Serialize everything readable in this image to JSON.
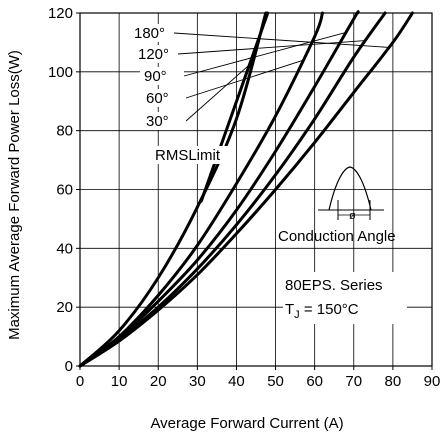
{
  "chart_data": {
    "type": "line",
    "xlabel": "Average Forward Current (A)",
    "ylabel": "Maximum Average Forward Power Loss(W)",
    "xlim": [
      0,
      90
    ],
    "ylim": [
      0,
      120
    ],
    "xticks": [
      0,
      10,
      20,
      30,
      40,
      50,
      60,
      70,
      80,
      90
    ],
    "yticks": [
      0,
      20,
      40,
      60,
      80,
      100,
      120
    ],
    "grid": true,
    "series": [
      {
        "name": "180°",
        "x": [
          0,
          10,
          20,
          30,
          40,
          50,
          60,
          70,
          80,
          85
        ],
        "y": [
          0,
          8.5,
          19,
          31,
          45,
          60,
          76,
          93,
          110,
          120
        ]
      },
      {
        "name": "120°",
        "x": [
          0,
          10,
          20,
          30,
          40,
          50,
          60,
          70,
          78
        ],
        "y": [
          0,
          9,
          20,
          33,
          48,
          65,
          84,
          105,
          120
        ]
      },
      {
        "name": "90°",
        "x": [
          0,
          10,
          20,
          30,
          40,
          50,
          60,
          70,
          71
        ],
        "y": [
          0,
          9.5,
          22,
          36,
          53,
          73,
          95,
          118,
          120
        ]
      },
      {
        "name": "60°",
        "x": [
          0,
          10,
          20,
          30,
          40,
          50,
          60,
          62
        ],
        "y": [
          0,
          10,
          24,
          41,
          62,
          85,
          112,
          120
        ]
      },
      {
        "name": "30°",
        "x": [
          0,
          10,
          20,
          30,
          40,
          47.5
        ],
        "y": [
          0,
          12,
          30,
          54,
          84,
          120
        ]
      },
      {
        "name": "RMSLimit",
        "x": [
          31,
          48
        ],
        "y": [
          56,
          120
        ]
      }
    ],
    "annotations": {
      "rms_limit": "RMSLimit",
      "conduction_angle": "Conduction Angle",
      "phi": "ø",
      "series_text": "80EPS. Series",
      "tj_prefix": "T",
      "tj_sub": "J",
      "tj_value": " = 150°C"
    }
  }
}
